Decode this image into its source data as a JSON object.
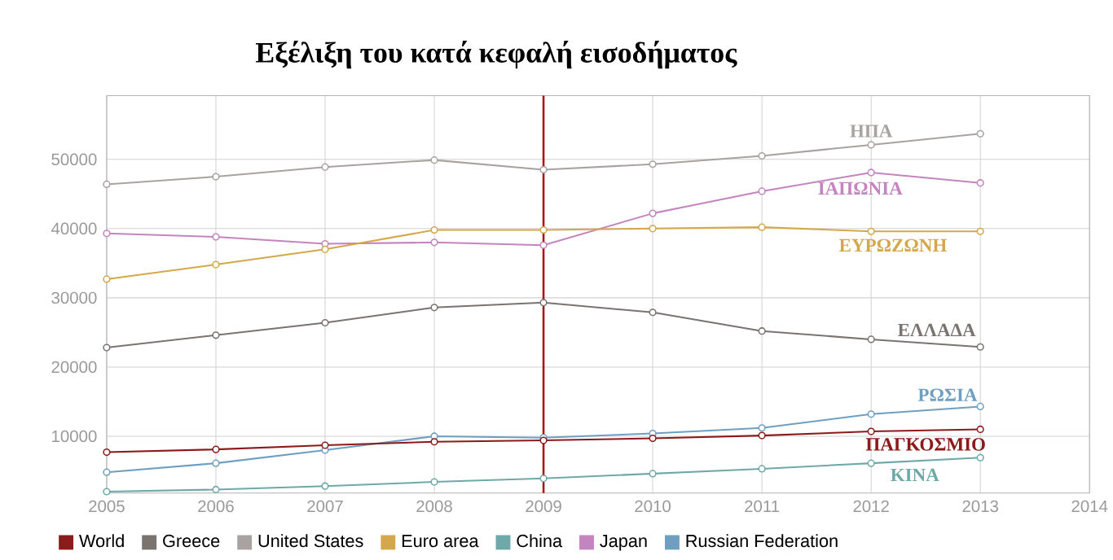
{
  "chart_data": {
    "type": "line",
    "title": "Εξέλιξη του κατά  κεφαλή εισοδήματος",
    "x": [
      2005,
      2006,
      2007,
      2008,
      2009,
      2010,
      2011,
      2012,
      2013
    ],
    "series": [
      {
        "name": "World",
        "color": "#8b1a1a",
        "values": [
          7700,
          8100,
          8700,
          9200,
          9400,
          9700,
          10100,
          10700,
          11000
        ]
      },
      {
        "name": "Greece",
        "color": "#7a7370",
        "values": [
          22800,
          24600,
          26400,
          28600,
          29300,
          27900,
          25200,
          24000,
          22900
        ]
      },
      {
        "name": "United States",
        "color": "#a8a3a0",
        "values": [
          46400,
          47500,
          48900,
          49900,
          48500,
          49300,
          50500,
          52100,
          53700
        ]
      },
      {
        "name": "Euro area",
        "color": "#d4a84a",
        "values": [
          32700,
          34800,
          37000,
          39800,
          39800,
          40000,
          40200,
          39600,
          39600
        ]
      },
      {
        "name": "China",
        "color": "#6fa8a8",
        "values": [
          2000,
          2300,
          2800,
          3400,
          3900,
          4600,
          5300,
          6100,
          6900
        ]
      },
      {
        "name": "Japan",
        "color": "#c484c0",
        "values": [
          39300,
          38800,
          37800,
          38000,
          37600,
          42200,
          45400,
          48100,
          46600
        ]
      },
      {
        "name": "Russian Federation",
        "color": "#6f9fc0",
        "values": [
          4800,
          6100,
          8000,
          10000,
          9800,
          10400,
          11200,
          13200,
          14300
        ]
      }
    ],
    "xlim": [
      2005,
      2014
    ],
    "xticks": [
      2005,
      2006,
      2007,
      2008,
      2009,
      2010,
      2011,
      2012,
      2013,
      2014
    ],
    "ylim": [
      1800,
      59200
    ],
    "yticks": [
      10000,
      20000,
      30000,
      40000,
      50000
    ],
    "ref_lines": [
      {
        "axis": "x",
        "value": 2009,
        "color": "#b01010"
      }
    ],
    "annotations": [
      {
        "text": "ΗΠΑ",
        "x": 2012,
        "y": 52100
      },
      {
        "text": "ΙΑΠΩΝΙΑ",
        "x": 2011.9,
        "y": 47830
      },
      {
        "text": "ΕΥΡΩΖΩΝΗ",
        "x": 2012.2,
        "y": 39600
      },
      {
        "text": "ΕΛΛΑΔΑ",
        "x": 2012.6,
        "y": 23340
      },
      {
        "text": "ΡΩΣΙΑ",
        "x": 2012.7,
        "y": 13970
      },
      {
        "text": "ΠΑΓΚΟΣΜΙΟ",
        "x": 2012.5,
        "y": 10850
      },
      {
        "text": "ΚΙΝΑ",
        "x": 2012.4,
        "y": 6420
      }
    ],
    "grid": true,
    "legend": "bottom",
    "marker": "circle",
    "line_style": "solid"
  }
}
